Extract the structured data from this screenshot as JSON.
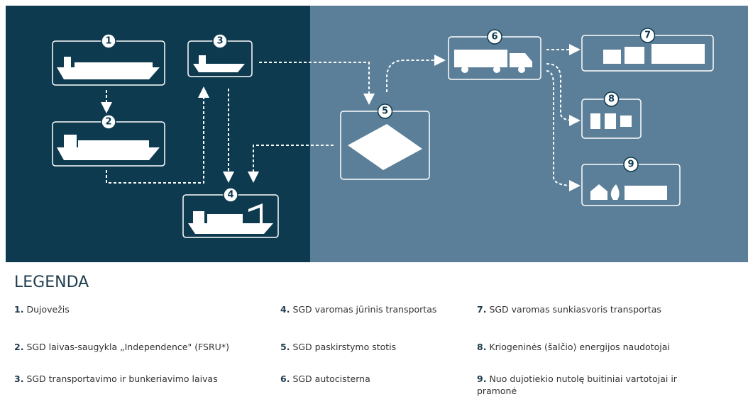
{
  "diagram": {
    "nodes": [
      {
        "number": "1"
      },
      {
        "number": "2"
      },
      {
        "number": "3"
      },
      {
        "number": "4"
      },
      {
        "number": "5"
      },
      {
        "number": "6"
      },
      {
        "number": "7"
      },
      {
        "number": "8"
      },
      {
        "number": "9"
      }
    ]
  },
  "legend": {
    "title": "LEGENDA",
    "items": [
      {
        "number": "1.",
        "text": "Dujovežis"
      },
      {
        "number": "2.",
        "text": "SGD laivas-saugykla „Independence\" (FSRU*)"
      },
      {
        "number": "3.",
        "text": "SGD transportavimo ir bunkeriavimo laivas"
      },
      {
        "number": "4.",
        "text": "SGD varomas jūrinis transportas"
      },
      {
        "number": "5.",
        "text": "SGD paskirstymo stotis"
      },
      {
        "number": "6.",
        "text": "SGD autocisterna"
      },
      {
        "number": "7.",
        "text": "SGD varomas sunkiasvoris transportas"
      },
      {
        "number": "8.",
        "text": "Kriogeninės (šalčio) energijos naudotojai"
      },
      {
        "number": "9.",
        "text": "Nuo dujotiekio nutolę buitiniai vartotojai ir pramonė"
      }
    ]
  }
}
